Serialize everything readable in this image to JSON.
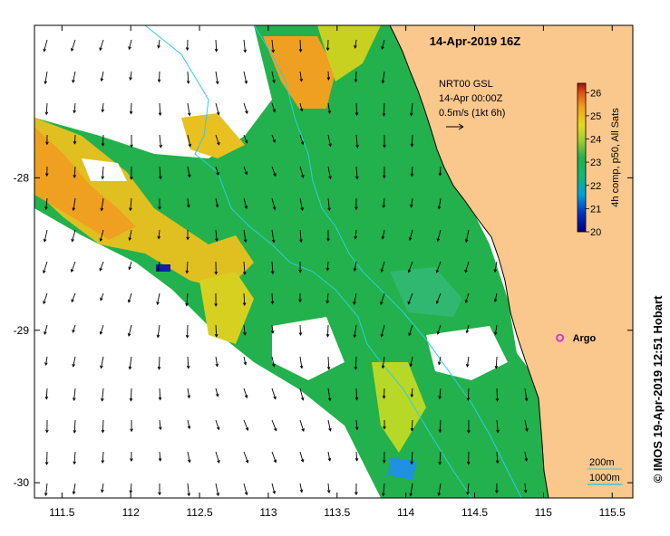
{
  "map": {
    "title": "14-Apr-2019 16Z",
    "credit": "© IMOS 19-Apr-2019 12:51 Hobart",
    "lon_ticks": [
      "111.5",
      "112",
      "112.5",
      "113",
      "113.5",
      "114",
      "114.5",
      "115",
      "115.5"
    ],
    "lat_ticks": [
      "-28",
      "-29",
      "-30"
    ],
    "lon_range": [
      111.3,
      115.65
    ],
    "lat_range": [
      -30.1,
      -27.0
    ],
    "current_legend": {
      "line1": "NRT00 GSL",
      "line2": "14-Apr 00:00Z",
      "line3": "0.5m/s (1kt 6h)"
    },
    "colorbar": {
      "label": "4h comp, p50, All Sats",
      "ticks": [
        "26",
        "25",
        "24",
        "23",
        "22",
        "21",
        "20"
      ],
      "range": [
        20,
        26.4
      ]
    },
    "argo": {
      "label": "Argo",
      "color": "#dd33dd",
      "lon": 115.12,
      "lat": -29.05
    },
    "isobaths": {
      "label_200": "200m",
      "label_1000": "1000m"
    },
    "colors": {
      "land": "#fac78c",
      "isobath": "#33ccdd",
      "green": "#22b14c",
      "yellow": "#e0d020",
      "orange": "#f0a020"
    }
  }
}
